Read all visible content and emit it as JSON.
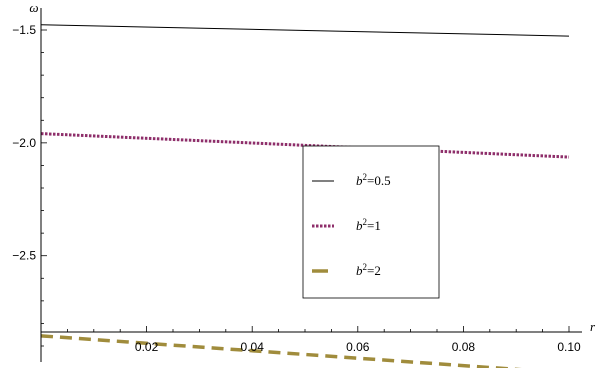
{
  "chart_data": {
    "type": "line",
    "xlabel": "r",
    "ylabel": "ω",
    "xlim": [
      0.0,
      0.1
    ],
    "ylim": [
      -2.9,
      -1.5
    ],
    "x_ticks": [
      0.02,
      0.04,
      0.06,
      0.08,
      0.1
    ],
    "x_tick_labels": [
      "0.02",
      "0.04",
      "0.06",
      "0.08",
      "0.10"
    ],
    "y_ticks": [
      -1.5,
      -2.0,
      -2.5
    ],
    "y_tick_labels": [
      "−1.5",
      "−2.0",
      "−2.5"
    ],
    "grid": false,
    "legend_position": "center-right",
    "series": [
      {
        "name": "b²=0.5",
        "legend_var": "b",
        "legend_rest": "=0.5",
        "color": "#000000",
        "style": "solid",
        "x": [
          0.0,
          0.1
        ],
        "y": [
          -1.477,
          -1.527
        ]
      },
      {
        "name": "b²=1",
        "legend_var": "b",
        "legend_rest": "=1",
        "color": "#8E2E6A",
        "style": "dotted",
        "x": [
          0.0,
          0.1
        ],
        "y": [
          -1.959,
          -2.063
        ]
      },
      {
        "name": "b²=2",
        "legend_var": "b",
        "legend_rest": "=2",
        "color": "#A08C3C",
        "style": "dashed",
        "x": [
          0.0,
          0.1
        ],
        "y": [
          -2.855,
          -3.02
        ]
      }
    ]
  }
}
